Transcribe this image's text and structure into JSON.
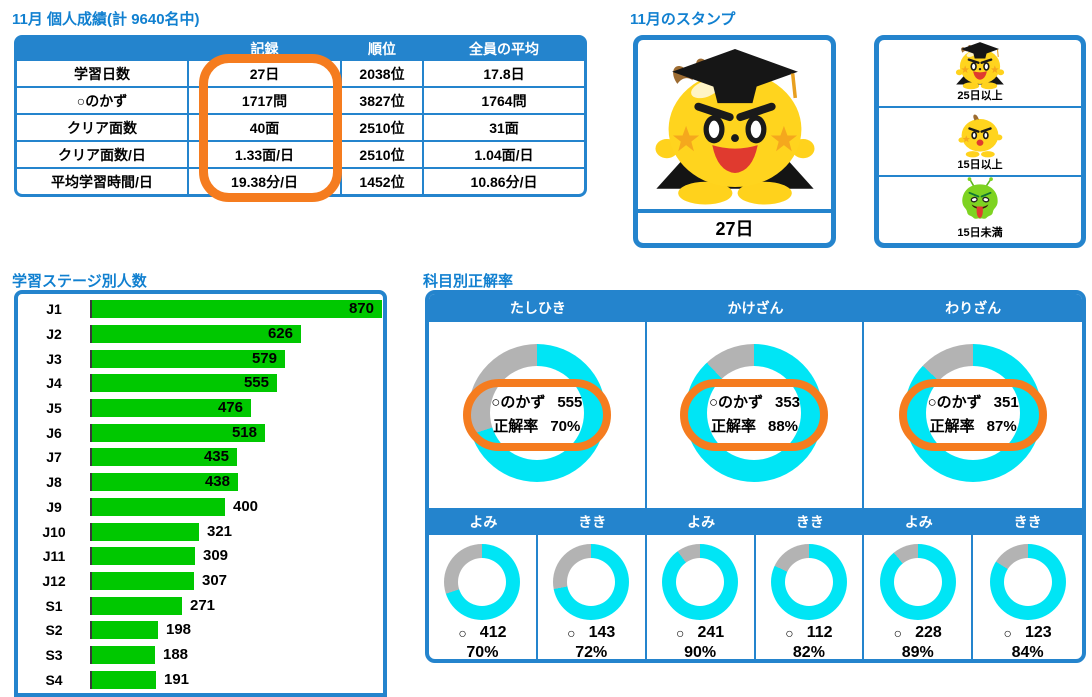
{
  "colors": {
    "header_blue": "#2484cd",
    "title_blue": "#1180d0",
    "highlight_orange": "#f57c1f",
    "bar_green": "#00c800",
    "donut_cyan": "#00e5f5",
    "donut_gray": "#b3b3b3"
  },
  "personal": {
    "title": "11月 個人成績(計 9640名中)",
    "headers": [
      "",
      "記録",
      "順位",
      "全員の平均"
    ],
    "rows": [
      {
        "label": "学習日数",
        "record": "27日",
        "rank": "2038位",
        "average": "17.8日"
      },
      {
        "label": "○のかず",
        "record": "1717問",
        "rank": "3827位",
        "average": "1764問"
      },
      {
        "label": "クリア面数",
        "record": "40面",
        "rank": "2510位",
        "average": "31面"
      },
      {
        "label": "クリア面数/日",
        "record": "1.33面/日",
        "rank": "2510位",
        "average": "1.04面/日"
      },
      {
        "label": "平均学習時間/日",
        "record": "19.38分/日",
        "rank": "1452位",
        "average": "10.86分/日"
      }
    ]
  },
  "stamp": {
    "title": "11月のスタンプ",
    "days": "27日",
    "mascot_icon": "graduate-mascot",
    "legend": [
      {
        "label": "25日以上",
        "icon": "graduate-mascot"
      },
      {
        "label": "15日以上",
        "icon": "yellow-mascot"
      },
      {
        "label": "15日未満",
        "icon": "green-monster"
      }
    ]
  },
  "chart_data": [
    {
      "type": "bar",
      "orientation": "horizontal",
      "title": "学習ステージ別人数",
      "categories": [
        "J1",
        "J2",
        "J3",
        "J4",
        "J5",
        "J6",
        "J7",
        "J8",
        "J9",
        "J10",
        "J11",
        "J12",
        "S1",
        "S2",
        "S3",
        "S4"
      ],
      "values": [
        870,
        626,
        579,
        555,
        476,
        518,
        435,
        438,
        400,
        321,
        309,
        307,
        271,
        198,
        188,
        191
      ],
      "bar_color": "#00c800",
      "value_labels": true,
      "xlim": [
        0,
        900
      ]
    },
    {
      "type": "donut",
      "title": "科目別正解率",
      "count_label": "○のかず",
      "rate_label": "正解率",
      "circle_symbol": "○",
      "ring_color": "#00e5f5",
      "rest_color": "#b3b3b3",
      "groups": [
        {
          "name": "たしひき",
          "count": 555,
          "rate": 70,
          "rate_pct": "70%"
        },
        {
          "name": "かけざん",
          "count": 353,
          "rate": 88,
          "rate_pct": "88%"
        },
        {
          "name": "わりざん",
          "count": 351,
          "rate": 87,
          "rate_pct": "87%"
        }
      ],
      "sub": [
        {
          "name": "よみ",
          "count": 412,
          "rate": 70,
          "rate_pct": "70%"
        },
        {
          "name": "きき",
          "count": 143,
          "rate": 72,
          "rate_pct": "72%"
        },
        {
          "name": "よみ",
          "count": 241,
          "rate": 90,
          "rate_pct": "90%"
        },
        {
          "name": "きき",
          "count": 112,
          "rate": 82,
          "rate_pct": "82%"
        },
        {
          "name": "よみ",
          "count": 228,
          "rate": 89,
          "rate_pct": "89%"
        },
        {
          "name": "きき",
          "count": 123,
          "rate": 84,
          "rate_pct": "84%"
        }
      ]
    }
  ]
}
